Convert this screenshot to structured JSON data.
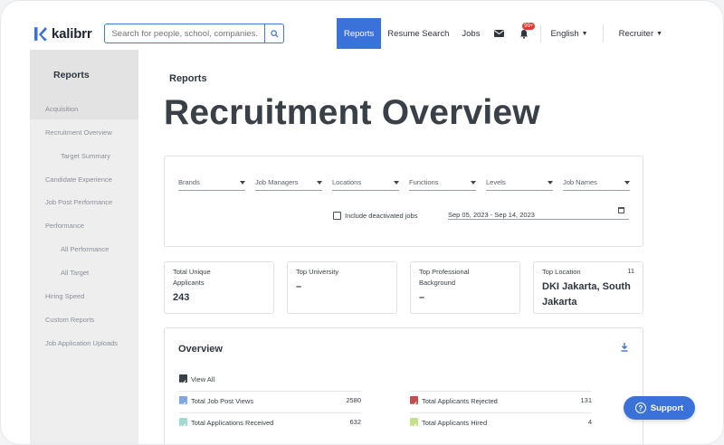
{
  "brand": {
    "name": "kalibrr",
    "accent": "#3b72d9"
  },
  "search": {
    "placeholder": "Search for people, school, companies..."
  },
  "nav": {
    "reports": "Reports",
    "resume_search": "Resume Search",
    "jobs": "Jobs",
    "notif_badge": "99+",
    "language": "English",
    "role": "Recruiter"
  },
  "sidebar": {
    "title": "Reports",
    "items": [
      {
        "label": "Acquisition"
      },
      {
        "label": "Recruitment Overview"
      },
      {
        "label": "Target Summary"
      },
      {
        "label": "Candidate Experience"
      },
      {
        "label": "Job Post Performance"
      },
      {
        "label": "Performance"
      },
      {
        "label": "All Performance"
      },
      {
        "label": "All Target"
      },
      {
        "label": "Hiring Speed"
      },
      {
        "label": "Custom Reports"
      },
      {
        "label": "Job Application Uploads"
      }
    ]
  },
  "page": {
    "breadcrumb": "Reports",
    "title": "Recruitment Overview"
  },
  "filters": {
    "brands": "Brands",
    "job_managers": "Job Managers",
    "locations": "Locations",
    "functions": "Functions",
    "levels": "Levels",
    "job_names": "Job Names",
    "include_deactivated": "Include deactivated jobs",
    "date_range": "Sep 05, 2023 - Sep 14, 2023"
  },
  "stats": {
    "total_unique_applicants": {
      "label_line1": "Total Unique",
      "label_line2": "Applicants",
      "value": "243"
    },
    "top_university": {
      "label": "Top University",
      "value": "–"
    },
    "top_professional_background": {
      "label_line1": "Top Professional",
      "label_line2": "Background",
      "value": "–"
    },
    "top_location": {
      "label": "Top Location",
      "count": "11",
      "value_line1": "DKI Jakarta, South",
      "value_line2": "Jakarta"
    }
  },
  "overview": {
    "title": "Overview",
    "view_all": "View All",
    "metrics": [
      {
        "label": "Total Job Post Views",
        "value": "2580",
        "color": "#7ea6e0"
      },
      {
        "label": "Total Applications Received",
        "value": "632",
        "color": "#9fd9cf"
      },
      {
        "label": "Total Applicants Rejected",
        "value": "131",
        "color": "#c0504d"
      },
      {
        "label": "Total Applicants Hired",
        "value": "4",
        "color": "#c5e08a"
      }
    ]
  },
  "support": {
    "label": "Support"
  }
}
